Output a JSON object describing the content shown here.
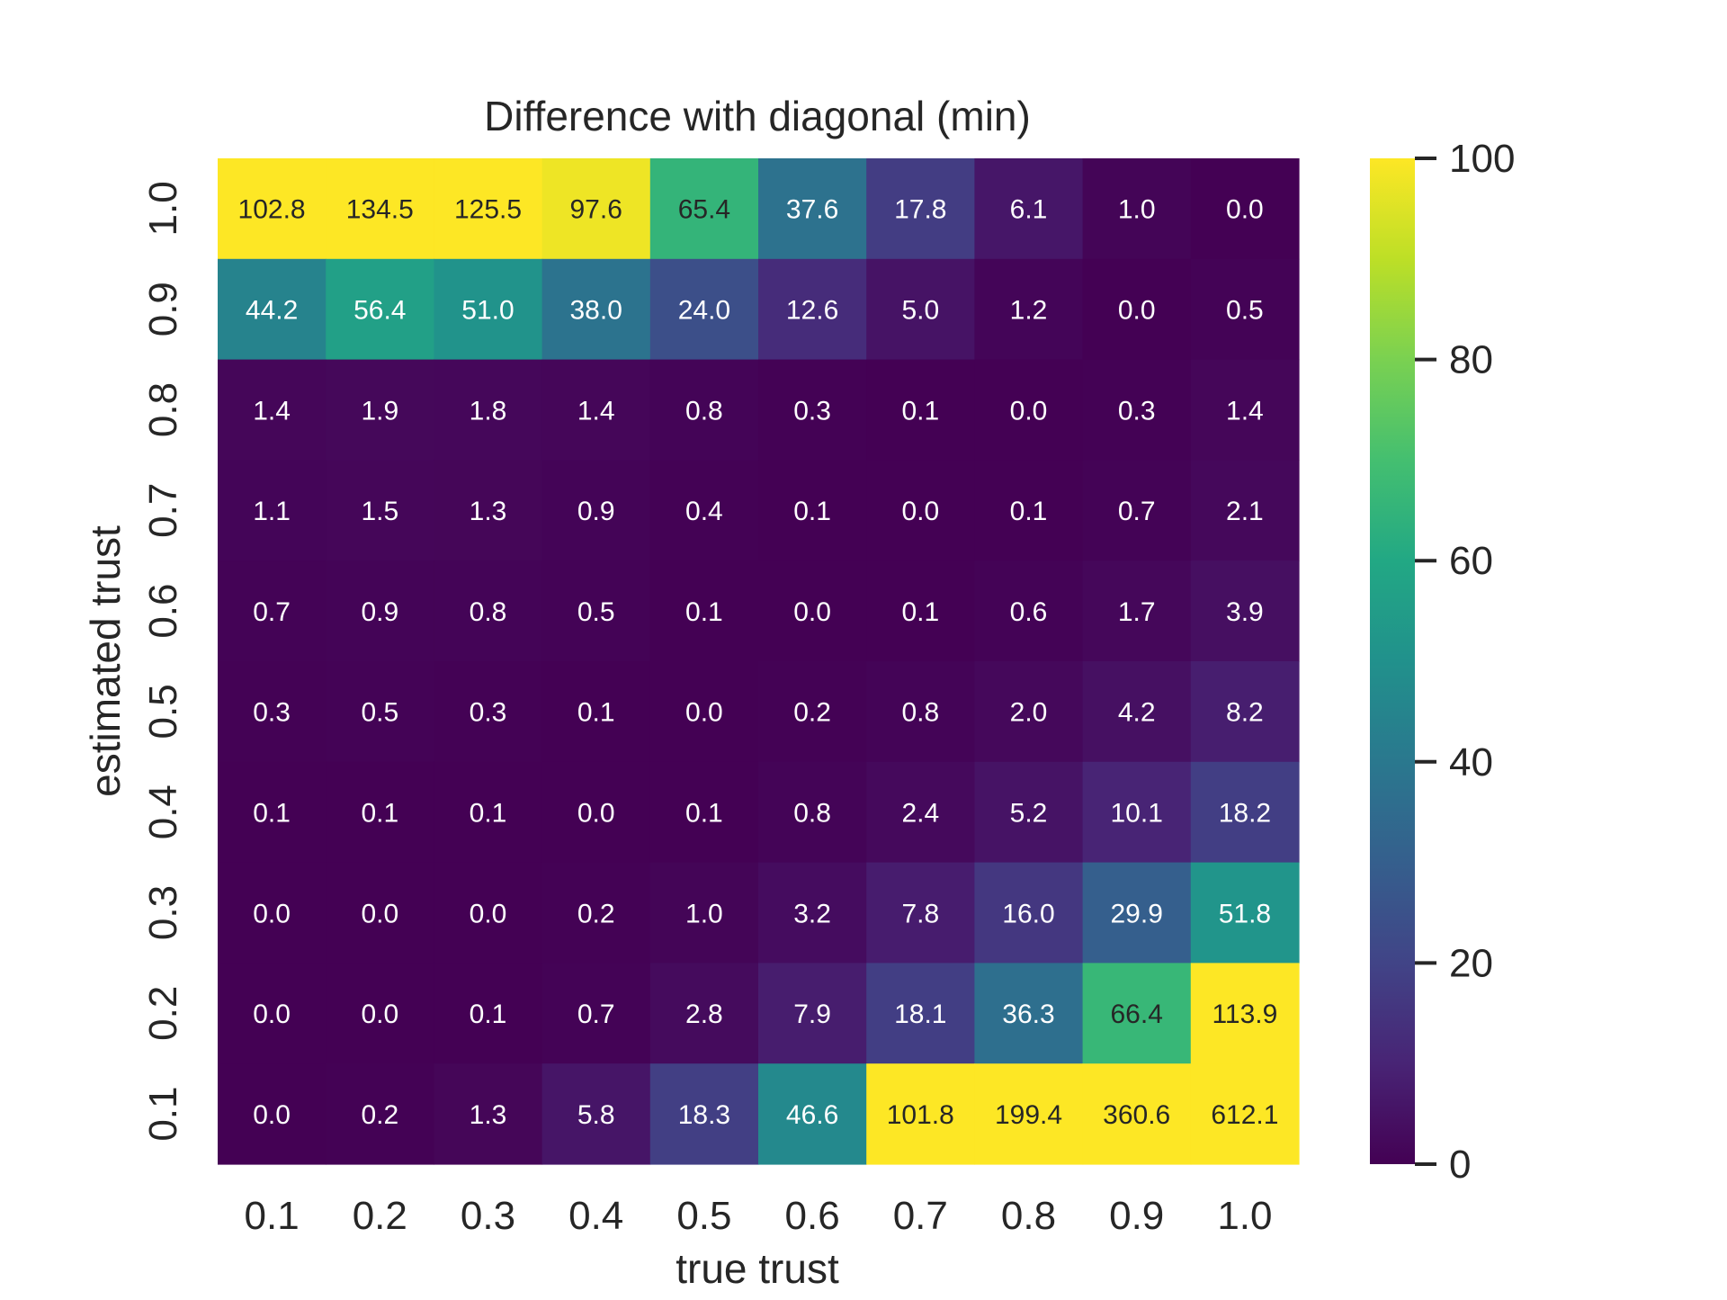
{
  "chart_data": {
    "type": "heatmap",
    "title": "Difference with diagonal (min)",
    "xlabel": "true trust",
    "ylabel": "estimated trust",
    "x_categories": [
      "0.1",
      "0.2",
      "0.3",
      "0.4",
      "0.5",
      "0.6",
      "0.7",
      "0.8",
      "0.9",
      "1.0"
    ],
    "y_categories": [
      "1.0",
      "0.9",
      "0.8",
      "0.7",
      "0.6",
      "0.5",
      "0.4",
      "0.3",
      "0.2",
      "0.1"
    ],
    "values": [
      [
        102.8,
        134.5,
        125.5,
        97.6,
        65.4,
        37.6,
        17.8,
        6.1,
        1.0,
        0.0
      ],
      [
        44.2,
        56.4,
        51.0,
        38.0,
        24.0,
        12.6,
        5.0,
        1.2,
        0.0,
        0.5
      ],
      [
        1.4,
        1.9,
        1.8,
        1.4,
        0.8,
        0.3,
        0.1,
        0.0,
        0.3,
        1.4
      ],
      [
        1.1,
        1.5,
        1.3,
        0.9,
        0.4,
        0.1,
        0.0,
        0.1,
        0.7,
        2.1
      ],
      [
        0.7,
        0.9,
        0.8,
        0.5,
        0.1,
        0.0,
        0.1,
        0.6,
        1.7,
        3.9
      ],
      [
        0.3,
        0.5,
        0.3,
        0.1,
        0.0,
        0.2,
        0.8,
        2.0,
        4.2,
        8.2
      ],
      [
        0.1,
        0.1,
        0.1,
        0.0,
        0.1,
        0.8,
        2.4,
        5.2,
        10.1,
        18.2
      ],
      [
        0.0,
        0.0,
        0.0,
        0.2,
        1.0,
        3.2,
        7.8,
        16.0,
        29.9,
        51.8
      ],
      [
        0.0,
        0.0,
        0.1,
        0.7,
        2.8,
        7.9,
        18.1,
        36.3,
        66.4,
        113.9
      ],
      [
        0.0,
        0.2,
        1.3,
        5.8,
        18.3,
        46.6,
        101.8,
        199.4,
        360.6,
        612.1
      ]
    ],
    "colormap": "viridis",
    "vmin": 0,
    "vmax": 100,
    "colorbar_ticks": [
      "0",
      "20",
      "40",
      "60",
      "80",
      "100"
    ],
    "grid": false,
    "annotated": true
  }
}
